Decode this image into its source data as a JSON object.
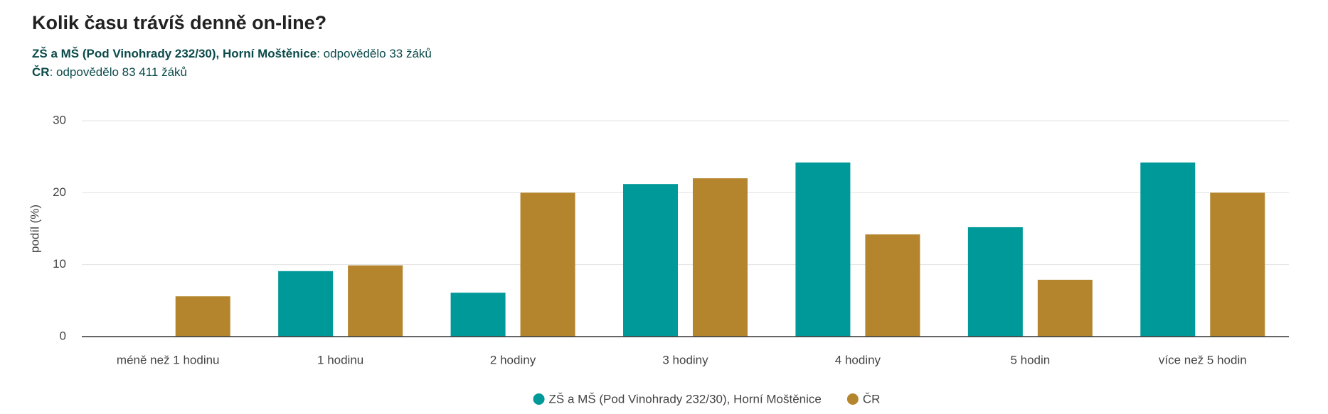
{
  "chart_data": {
    "type": "bar",
    "title": "Kolik času trávíš denně on-line?",
    "subtitle_lines": [
      {
        "bold": "ZŠ a MŠ (Pod Vinohrady 232/30), Horní Moštěnice",
        "text": ": odpovědělo 33 žáků"
      },
      {
        "bold": "ČR",
        "text": ": odpovědělo 83 411 žáků"
      }
    ],
    "y_label": "podíl (%)",
    "categories": [
      "méně než 1 hodinu",
      "1 hodinu",
      "2 hodiny",
      "3 hodiny",
      "4 hodiny",
      "5 hodin",
      "více než 5 hodin"
    ],
    "series": [
      {
        "name": "ZŠ a MŠ (Pod Vinohrady 232/30), Horní Moštěnice",
        "color": "#009999",
        "values": [
          0,
          9.1,
          6.1,
          21.2,
          24.2,
          15.2,
          24.2
        ]
      },
      {
        "name": "ČR",
        "color": "#b5852e",
        "values": [
          5.6,
          9.9,
          20.0,
          22.0,
          14.2,
          7.9,
          20.0
        ]
      }
    ],
    "ylim": [
      0,
      30
    ],
    "yticks": [
      0,
      10,
      20,
      30
    ],
    "grid": true,
    "legend": "bottom"
  }
}
